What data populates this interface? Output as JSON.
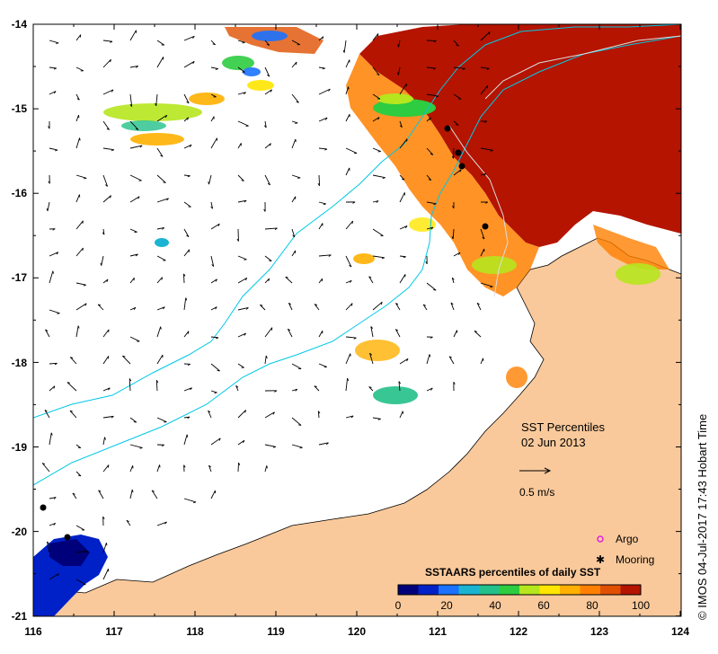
{
  "map": {
    "title": "SST Percentiles",
    "date": "02 Jun 2013",
    "x_ticks": [
      "116",
      "117",
      "118",
      "119",
      "120",
      "121",
      "122",
      "123",
      "124"
    ],
    "y_ticks": [
      "-14",
      "-15",
      "-16",
      "-17",
      "-18",
      "-19",
      "-20",
      "-21"
    ],
    "land_color": "#f9c99b",
    "current_reference": "0.5 m/s"
  },
  "legend": {
    "argo_label": "Argo",
    "mooring_label": "Mooring",
    "colorbar_title": "SSTAARS percentiles of daily SST",
    "colorbar_ticks": [
      "0",
      "20",
      "40",
      "60",
      "80",
      "100"
    ],
    "colorbar_colors": [
      "#00007a",
      "#0020c8",
      "#1a72ff",
      "#1ab4d2",
      "#22c08a",
      "#2ecc40",
      "#b6e61e",
      "#ffe600",
      "#ffb000",
      "#ff8000",
      "#e05000",
      "#b41400"
    ]
  },
  "credit": "© IMOS 04-Jul-2017 17:43 Hobart Time"
}
